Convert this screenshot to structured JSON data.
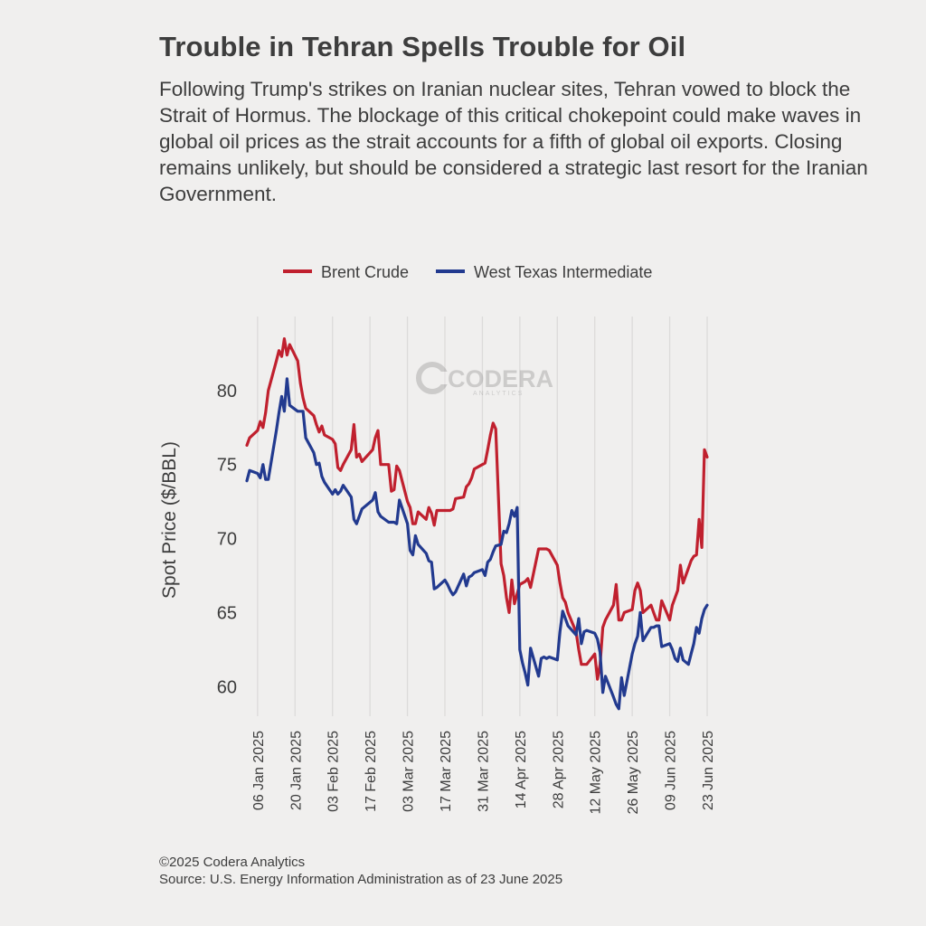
{
  "header": {
    "title": "Trouble in Tehran Spells Trouble for Oil",
    "subtitle": "Following Trump's strikes on Iranian nuclear sites, Tehran vowed to block the Strait of Hormus. The blockage of this critical chokepoint could make waves in global oil prices as the strait accounts for a fifth of global oil exports. Closing remains unlikely, but should be considered a strategic last resort for the Iranian Government."
  },
  "watermark": {
    "name": "CODERA",
    "tagline": "ANALYTICS"
  },
  "footer": {
    "copyright": "©2025 Codera Analytics",
    "source": "Source: U.S. Energy Information Administration as of 23 June 2025"
  },
  "chart_data": {
    "type": "line",
    "title": "Trouble in Tehran Spells Trouble for Oil",
    "xlabel": "",
    "ylabel": "Spot Price ($/BBL)",
    "ylim": [
      58,
      85
    ],
    "xlim": [
      "2025-01-02",
      "2025-06-23"
    ],
    "yticks": [
      60,
      65,
      70,
      75,
      80
    ],
    "xticks": [
      "2025-01-06",
      "2025-01-20",
      "2025-02-03",
      "2025-02-17",
      "2025-03-03",
      "2025-03-17",
      "2025-03-31",
      "2025-04-14",
      "2025-04-28",
      "2025-05-12",
      "2025-05-26",
      "2025-06-09",
      "2025-06-23"
    ],
    "xtick_labels": [
      "06 Jan 2025",
      "20 Jan 2025",
      "03 Feb 2025",
      "17 Feb 2025",
      "03 Mar 2025",
      "17 Mar 2025",
      "31 Mar 2025",
      "14 Apr 2025",
      "28 Apr 2025",
      "12 May 2025",
      "26 May 2025",
      "09 Jun 2025",
      "23 Jun 2025"
    ],
    "grid": "vertical",
    "legend_position": "top",
    "colors": {
      "Brent Crude": "#c0202e",
      "West Texas Intermediate": "#223a8f"
    },
    "series": [
      {
        "name": "Brent Crude",
        "points": [
          [
            "2025-01-02",
            76.3
          ],
          [
            "2025-01-03",
            76.8
          ],
          [
            "2025-01-06",
            77.3
          ],
          [
            "2025-01-07",
            77.9
          ],
          [
            "2025-01-08",
            77.5
          ],
          [
            "2025-01-09",
            78.5
          ],
          [
            "2025-01-10",
            80.0
          ],
          [
            "2025-01-13",
            82.0
          ],
          [
            "2025-01-14",
            82.7
          ],
          [
            "2025-01-15",
            82.3
          ],
          [
            "2025-01-16",
            83.5
          ],
          [
            "2025-01-17",
            82.4
          ],
          [
            "2025-01-18",
            83.1
          ],
          [
            "2025-01-21",
            82.0
          ],
          [
            "2025-01-22",
            80.5
          ],
          [
            "2025-01-23",
            79.5
          ],
          [
            "2025-01-24",
            78.8
          ],
          [
            "2025-01-27",
            78.3
          ],
          [
            "2025-01-28",
            77.7
          ],
          [
            "2025-01-29",
            77.2
          ],
          [
            "2025-01-30",
            77.6
          ],
          [
            "2025-01-31",
            77.0
          ],
          [
            "2025-02-03",
            76.7
          ],
          [
            "2025-02-04",
            76.4
          ],
          [
            "2025-02-05",
            74.8
          ],
          [
            "2025-02-06",
            74.6
          ],
          [
            "2025-02-07",
            75.0
          ],
          [
            "2025-02-10",
            76.0
          ],
          [
            "2025-02-11",
            77.7
          ],
          [
            "2025-02-12",
            75.5
          ],
          [
            "2025-02-13",
            75.7
          ],
          [
            "2025-02-14",
            75.2
          ],
          [
            "2025-02-18",
            76.0
          ],
          [
            "2025-02-19",
            76.8
          ],
          [
            "2025-02-20",
            77.3
          ],
          [
            "2025-02-21",
            75.0
          ],
          [
            "2025-02-24",
            75.0
          ],
          [
            "2025-02-25",
            73.2
          ],
          [
            "2025-02-26",
            73.3
          ],
          [
            "2025-02-27",
            74.9
          ],
          [
            "2025-02-28",
            74.6
          ],
          [
            "2025-03-03",
            72.5
          ],
          [
            "2025-03-04",
            72.1
          ],
          [
            "2025-03-05",
            71.0
          ],
          [
            "2025-03-06",
            71.0
          ],
          [
            "2025-03-07",
            71.8
          ],
          [
            "2025-03-10",
            71.3
          ],
          [
            "2025-03-11",
            72.1
          ],
          [
            "2025-03-12",
            71.7
          ],
          [
            "2025-03-13",
            70.9
          ],
          [
            "2025-03-14",
            71.9
          ],
          [
            "2025-03-17",
            71.9
          ],
          [
            "2025-03-18",
            71.9
          ],
          [
            "2025-03-19",
            71.9
          ],
          [
            "2025-03-20",
            72.0
          ],
          [
            "2025-03-21",
            72.7
          ],
          [
            "2025-03-24",
            72.8
          ],
          [
            "2025-03-25",
            73.5
          ],
          [
            "2025-03-26",
            73.7
          ],
          [
            "2025-03-27",
            74.1
          ],
          [
            "2025-03-28",
            74.7
          ],
          [
            "2025-03-31",
            75.0
          ],
          [
            "2025-04-01",
            75.1
          ],
          [
            "2025-04-02",
            76.0
          ],
          [
            "2025-04-03",
            77.0
          ],
          [
            "2025-04-04",
            77.8
          ],
          [
            "2025-04-05",
            77.4
          ],
          [
            "2025-04-07",
            68.3
          ],
          [
            "2025-04-08",
            67.5
          ],
          [
            "2025-04-09",
            66.0
          ],
          [
            "2025-04-10",
            65.0
          ],
          [
            "2025-04-11",
            67.2
          ],
          [
            "2025-04-12",
            65.6
          ],
          [
            "2025-04-14",
            66.9
          ],
          [
            "2025-04-15",
            67.0
          ],
          [
            "2025-04-16",
            67.1
          ],
          [
            "2025-04-17",
            67.3
          ],
          [
            "2025-04-18",
            66.7
          ],
          [
            "2025-04-21",
            69.3
          ],
          [
            "2025-04-22",
            69.3
          ],
          [
            "2025-04-23",
            69.3
          ],
          [
            "2025-04-24",
            69.3
          ],
          [
            "2025-04-25",
            69.2
          ],
          [
            "2025-04-28",
            68.2
          ],
          [
            "2025-04-29",
            67.0
          ],
          [
            "2025-04-30",
            66.0
          ],
          [
            "2025-05-01",
            65.7
          ],
          [
            "2025-05-02",
            65.0
          ],
          [
            "2025-05-05",
            63.7
          ],
          [
            "2025-05-06",
            62.5
          ],
          [
            "2025-05-07",
            61.5
          ],
          [
            "2025-05-08",
            61.5
          ],
          [
            "2025-05-09",
            61.5
          ],
          [
            "2025-05-12",
            62.2
          ],
          [
            "2025-05-13",
            60.5
          ],
          [
            "2025-05-14",
            61.5
          ],
          [
            "2025-05-15",
            64.0
          ],
          [
            "2025-05-16",
            64.5
          ],
          [
            "2025-05-19",
            65.5
          ],
          [
            "2025-05-20",
            66.9
          ],
          [
            "2025-05-21",
            64.5
          ],
          [
            "2025-05-22",
            64.5
          ],
          [
            "2025-05-23",
            65.0
          ],
          [
            "2025-05-26",
            65.2
          ],
          [
            "2025-05-27",
            66.5
          ],
          [
            "2025-05-28",
            67.0
          ],
          [
            "2025-05-29",
            66.5
          ],
          [
            "2025-05-30",
            65.0
          ],
          [
            "2025-06-02",
            65.5
          ],
          [
            "2025-06-03",
            65.0
          ],
          [
            "2025-06-04",
            64.5
          ],
          [
            "2025-06-05",
            64.5
          ],
          [
            "2025-06-06",
            65.8
          ],
          [
            "2025-06-09",
            64.5
          ],
          [
            "2025-06-10",
            65.5
          ],
          [
            "2025-06-11",
            66.0
          ],
          [
            "2025-06-12",
            66.5
          ],
          [
            "2025-06-13",
            68.2
          ],
          [
            "2025-06-14",
            67.0
          ],
          [
            "2025-06-16",
            68.0
          ],
          [
            "2025-06-17",
            68.5
          ],
          [
            "2025-06-18",
            68.8
          ],
          [
            "2025-06-19",
            68.9
          ],
          [
            "2025-06-20",
            71.3
          ],
          [
            "2025-06-21",
            69.4
          ],
          [
            "2025-06-22",
            76.0
          ],
          [
            "2025-06-23",
            75.5
          ]
        ]
      },
      {
        "name": "West Texas Intermediate",
        "points": [
          [
            "2025-01-02",
            73.9
          ],
          [
            "2025-01-03",
            74.6
          ],
          [
            "2025-01-06",
            74.4
          ],
          [
            "2025-01-07",
            74.1
          ],
          [
            "2025-01-08",
            75.0
          ],
          [
            "2025-01-09",
            74.0
          ],
          [
            "2025-01-10",
            74.0
          ],
          [
            "2025-01-13",
            77.3
          ],
          [
            "2025-01-14",
            78.5
          ],
          [
            "2025-01-15",
            79.6
          ],
          [
            "2025-01-16",
            78.6
          ],
          [
            "2025-01-17",
            80.8
          ],
          [
            "2025-01-18",
            79.0
          ],
          [
            "2025-01-21",
            78.6
          ],
          [
            "2025-01-22",
            78.6
          ],
          [
            "2025-01-23",
            78.6
          ],
          [
            "2025-01-24",
            76.8
          ],
          [
            "2025-01-27",
            75.8
          ],
          [
            "2025-01-28",
            75.0
          ],
          [
            "2025-01-29",
            75.1
          ],
          [
            "2025-01-30",
            74.2
          ],
          [
            "2025-01-31",
            73.8
          ],
          [
            "2025-02-03",
            73.0
          ],
          [
            "2025-02-04",
            73.3
          ],
          [
            "2025-02-05",
            73.0
          ],
          [
            "2025-02-06",
            73.2
          ],
          [
            "2025-02-07",
            73.6
          ],
          [
            "2025-02-10",
            72.8
          ],
          [
            "2025-02-11",
            71.3
          ],
          [
            "2025-02-12",
            71.0
          ],
          [
            "2025-02-13",
            71.5
          ],
          [
            "2025-02-14",
            72.0
          ],
          [
            "2025-02-18",
            72.6
          ],
          [
            "2025-02-19",
            73.1
          ],
          [
            "2025-02-20",
            71.8
          ],
          [
            "2025-02-21",
            71.5
          ],
          [
            "2025-02-24",
            71.1
          ],
          [
            "2025-02-25",
            71.1
          ],
          [
            "2025-02-26",
            71.1
          ],
          [
            "2025-02-27",
            71.0
          ],
          [
            "2025-02-28",
            72.6
          ],
          [
            "2025-03-03",
            71.0
          ],
          [
            "2025-03-04",
            69.2
          ],
          [
            "2025-03-05",
            68.9
          ],
          [
            "2025-03-06",
            70.2
          ],
          [
            "2025-03-07",
            69.6
          ],
          [
            "2025-03-10",
            69.0
          ],
          [
            "2025-03-11",
            68.5
          ],
          [
            "2025-03-12",
            68.4
          ],
          [
            "2025-03-13",
            66.6
          ],
          [
            "2025-03-14",
            66.7
          ],
          [
            "2025-03-17",
            67.2
          ],
          [
            "2025-03-18",
            66.9
          ],
          [
            "2025-03-19",
            66.5
          ],
          [
            "2025-03-20",
            66.2
          ],
          [
            "2025-03-21",
            66.4
          ],
          [
            "2025-03-24",
            67.6
          ],
          [
            "2025-03-25",
            66.8
          ],
          [
            "2025-03-26",
            67.4
          ],
          [
            "2025-03-27",
            67.5
          ],
          [
            "2025-03-28",
            67.7
          ],
          [
            "2025-03-31",
            67.9
          ],
          [
            "2025-04-01",
            67.5
          ],
          [
            "2025-04-02",
            68.4
          ],
          [
            "2025-04-03",
            68.6
          ],
          [
            "2025-04-04",
            69.1
          ],
          [
            "2025-04-05",
            69.5
          ],
          [
            "2025-04-07",
            69.6
          ],
          [
            "2025-04-08",
            70.5
          ],
          [
            "2025-04-09",
            70.4
          ],
          [
            "2025-04-10",
            71.0
          ],
          [
            "2025-04-11",
            71.9
          ],
          [
            "2025-04-12",
            71.5
          ],
          [
            "2025-04-13",
            72.1
          ],
          [
            "2025-04-14",
            62.5
          ],
          [
            "2025-04-15",
            61.6
          ],
          [
            "2025-04-16",
            60.9
          ],
          [
            "2025-04-17",
            60.1
          ],
          [
            "2025-04-18",
            62.6
          ],
          [
            "2025-04-21",
            60.7
          ],
          [
            "2025-04-22",
            61.9
          ],
          [
            "2025-04-23",
            62.0
          ],
          [
            "2025-04-24",
            61.9
          ],
          [
            "2025-04-25",
            62.0
          ],
          [
            "2025-04-28",
            61.8
          ],
          [
            "2025-04-29",
            63.7
          ],
          [
            "2025-04-30",
            65.1
          ],
          [
            "2025-05-01",
            64.6
          ],
          [
            "2025-05-02",
            64.1
          ],
          [
            "2025-05-05",
            63.5
          ],
          [
            "2025-05-06",
            64.6
          ],
          [
            "2025-05-07",
            62.9
          ],
          [
            "2025-05-08",
            63.7
          ],
          [
            "2025-05-09",
            63.8
          ],
          [
            "2025-05-12",
            63.6
          ],
          [
            "2025-05-13",
            63.2
          ],
          [
            "2025-05-14",
            62.3
          ],
          [
            "2025-05-15",
            59.6
          ],
          [
            "2025-05-16",
            60.7
          ],
          [
            "2025-05-19",
            59.3
          ],
          [
            "2025-05-20",
            58.8
          ],
          [
            "2025-05-21",
            58.5
          ],
          [
            "2025-05-22",
            60.6
          ],
          [
            "2025-05-23",
            59.4
          ],
          [
            "2025-05-26",
            62.2
          ],
          [
            "2025-05-27",
            62.9
          ],
          [
            "2025-05-28",
            63.4
          ],
          [
            "2025-05-29",
            65.0
          ],
          [
            "2025-05-30",
            63.1
          ],
          [
            "2025-06-02",
            64.0
          ],
          [
            "2025-06-03",
            64.0
          ],
          [
            "2025-06-04",
            64.1
          ],
          [
            "2025-06-05",
            64.1
          ],
          [
            "2025-06-06",
            62.7
          ],
          [
            "2025-06-09",
            62.9
          ],
          [
            "2025-06-10",
            62.5
          ],
          [
            "2025-06-11",
            61.9
          ],
          [
            "2025-06-12",
            61.7
          ],
          [
            "2025-06-13",
            62.6
          ],
          [
            "2025-06-14",
            61.8
          ],
          [
            "2025-06-16",
            61.5
          ],
          [
            "2025-06-17",
            62.2
          ],
          [
            "2025-06-18",
            62.9
          ],
          [
            "2025-06-19",
            64.0
          ],
          [
            "2025-06-20",
            63.6
          ],
          [
            "2025-06-21",
            64.6
          ],
          [
            "2025-06-22",
            65.2
          ],
          [
            "2025-06-23",
            65.5
          ]
        ]
      }
    ]
  }
}
